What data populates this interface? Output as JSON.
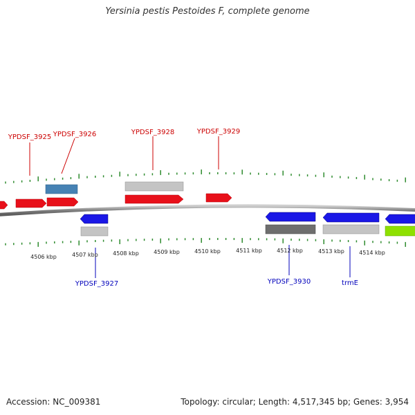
{
  "title": "Yersinia pestis Pestoides F, complete genome",
  "footer": {
    "accession": "Accession: NC_009381",
    "summary": "Topology: circular; Length: 4,517,345 bp; Genes: 3,954"
  },
  "colors": {
    "backbone": "#8a8a8a",
    "tick": "#2e8b2e",
    "forward_gene": "#e8101a",
    "reverse_gene": "#1a17e6",
    "label_forward": "#cc0000",
    "label_reverse": "#0000bb",
    "steelblue": "#4682b4",
    "gray": "#c0c0c0",
    "darkgray": "#6e6e6e",
    "lime": "#8ee000"
  },
  "axis_labels": [
    "4506 kbp",
    "4507 kbp",
    "4508 kbp",
    "4509 kbp",
    "4510 kbp",
    "4511 kbp",
    "4512 kbp",
    "4513 kbp",
    "4514 kbp"
  ],
  "gene_labels": {
    "top": [
      "YPDSF_3925",
      "YPDSF_3926",
      "YPDSF_3928",
      "YPDSF_3929"
    ],
    "bottom": [
      "YPDSF_3927",
      "YPDSF_3930",
      "trmE"
    ]
  }
}
